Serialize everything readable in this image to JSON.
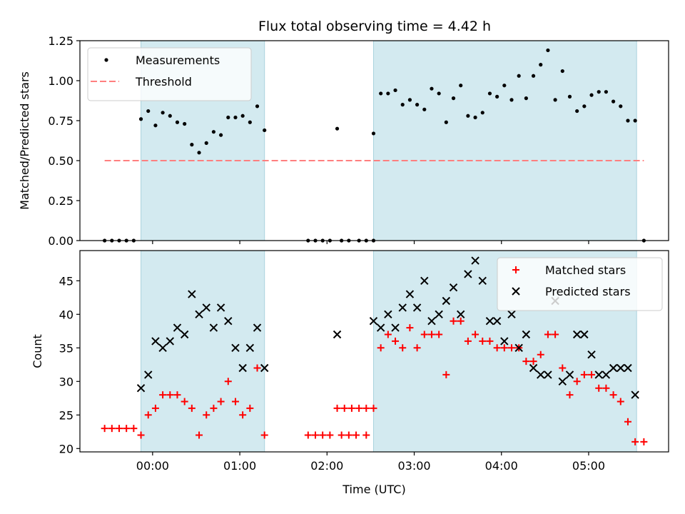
{
  "title": "Flux total observing time = 4.42 h",
  "chart_data": [
    {
      "type": "scatter",
      "ylabel": "Matched/Predicted stars",
      "xlabel": "",
      "xlim": [
        "23:10",
        "05:55"
      ],
      "ylim": [
        0,
        1.25
      ],
      "yticks": [
        0.0,
        0.25,
        0.5,
        0.75,
        1.0,
        1.25
      ],
      "ytick_labels": [
        "0.00",
        "0.25",
        "0.50",
        "0.75",
        "1.00",
        "1.25"
      ],
      "legend_position": "top-left",
      "shaded_intervals": [
        [
          "23:52",
          "01:17"
        ],
        [
          "02:32",
          "05:33"
        ]
      ],
      "shade_color": "#d3eaf0",
      "reference_lines": [
        {
          "name": "Threshold",
          "y": 0.5,
          "x_from": "23:27",
          "x_to": "05:38",
          "color": "#ff7f7f",
          "style": "dashed"
        }
      ],
      "series": [
        {
          "name": "Measurements",
          "marker": "dot",
          "color": "#000000",
          "points": [
            [
              "23:27",
              0.0
            ],
            [
              "23:32",
              0.0
            ],
            [
              "23:37",
              0.0
            ],
            [
              "23:42",
              0.0
            ],
            [
              "23:47",
              0.0
            ],
            [
              "23:52",
              0.76
            ],
            [
              "23:57",
              0.81
            ],
            [
              "00:02",
              0.72
            ],
            [
              "00:07",
              0.8
            ],
            [
              "00:12",
              0.78
            ],
            [
              "00:17",
              0.74
            ],
            [
              "00:22",
              0.73
            ],
            [
              "00:27",
              0.6
            ],
            [
              "00:32",
              0.55
            ],
            [
              "00:37",
              0.61
            ],
            [
              "00:42",
              0.68
            ],
            [
              "00:47",
              0.66
            ],
            [
              "00:52",
              0.77
            ],
            [
              "00:57",
              0.77
            ],
            [
              "01:02",
              0.78
            ],
            [
              "01:07",
              0.74
            ],
            [
              "01:12",
              0.84
            ],
            [
              "01:17",
              0.69
            ],
            [
              "01:47",
              0.0
            ],
            [
              "01:52",
              0.0
            ],
            [
              "01:57",
              0.0
            ],
            [
              "02:02",
              0.0
            ],
            [
              "02:10",
              0.0
            ],
            [
              "02:15",
              0.0
            ],
            [
              "02:22",
              0.0
            ],
            [
              "02:27",
              0.0
            ],
            [
              "02:32",
              0.0
            ],
            [
              "02:07",
              0.7
            ],
            [
              "02:32",
              0.67
            ],
            [
              "02:37",
              0.92
            ],
            [
              "02:42",
              0.92
            ],
            [
              "02:47",
              0.94
            ],
            [
              "02:52",
              0.85
            ],
            [
              "02:57",
              0.88
            ],
            [
              "03:02",
              0.85
            ],
            [
              "03:07",
              0.82
            ],
            [
              "03:12",
              0.95
            ],
            [
              "03:17",
              0.92
            ],
            [
              "03:22",
              0.74
            ],
            [
              "03:27",
              0.89
            ],
            [
              "03:32",
              0.97
            ],
            [
              "03:37",
              0.78
            ],
            [
              "03:42",
              0.77
            ],
            [
              "03:47",
              0.8
            ],
            [
              "03:52",
              0.92
            ],
            [
              "03:57",
              0.9
            ],
            [
              "04:02",
              0.97
            ],
            [
              "04:07",
              0.88
            ],
            [
              "04:12",
              1.03
            ],
            [
              "04:17",
              0.89
            ],
            [
              "04:22",
              1.03
            ],
            [
              "04:27",
              1.1
            ],
            [
              "04:32",
              1.19
            ],
            [
              "04:37",
              0.88
            ],
            [
              "04:42",
              1.06
            ],
            [
              "04:47",
              0.9
            ],
            [
              "04:52",
              0.81
            ],
            [
              "04:57",
              0.84
            ],
            [
              "05:02",
              0.91
            ],
            [
              "05:07",
              0.93
            ],
            [
              "05:12",
              0.93
            ],
            [
              "05:17",
              0.87
            ],
            [
              "05:22",
              0.84
            ],
            [
              "05:27",
              0.75
            ],
            [
              "05:32",
              0.75
            ],
            [
              "05:38",
              0.0
            ]
          ]
        }
      ]
    },
    {
      "type": "scatter",
      "ylabel": "Count",
      "xlabel": "Time (UTC)",
      "xlim": [
        "23:10",
        "05:55"
      ],
      "ylim": [
        19.5,
        49.5
      ],
      "yticks": [
        20,
        25,
        30,
        35,
        40,
        45
      ],
      "ytick_labels": [
        "20",
        "25",
        "30",
        "35",
        "40",
        "45"
      ],
      "xticks": [
        "00:00",
        "01:00",
        "02:00",
        "03:00",
        "04:00",
        "05:00"
      ],
      "legend_position": "top-right",
      "shaded_intervals": [
        [
          "23:52",
          "01:17"
        ],
        [
          "02:32",
          "05:33"
        ]
      ],
      "shade_color": "#d3eaf0",
      "series": [
        {
          "name": "Matched stars",
          "marker": "plus",
          "color": "#ff0000",
          "points": [
            [
              "23:27",
              23
            ],
            [
              "23:32",
              23
            ],
            [
              "23:37",
              23
            ],
            [
              "23:42",
              23
            ],
            [
              "23:47",
              23
            ],
            [
              "23:52",
              22
            ],
            [
              "23:57",
              25
            ],
            [
              "00:02",
              26
            ],
            [
              "00:07",
              28
            ],
            [
              "00:12",
              28
            ],
            [
              "00:17",
              28
            ],
            [
              "00:22",
              27
            ],
            [
              "00:27",
              26
            ],
            [
              "00:32",
              22
            ],
            [
              "00:37",
              25
            ],
            [
              "00:42",
              26
            ],
            [
              "00:47",
              27
            ],
            [
              "00:52",
              30
            ],
            [
              "00:57",
              27
            ],
            [
              "01:02",
              25
            ],
            [
              "01:07",
              26
            ],
            [
              "01:12",
              32
            ],
            [
              "01:17",
              22
            ],
            [
              "01:47",
              22
            ],
            [
              "01:52",
              22
            ],
            [
              "01:57",
              22
            ],
            [
              "02:02",
              22
            ],
            [
              "02:10",
              22
            ],
            [
              "02:15",
              22
            ],
            [
              "02:20",
              22
            ],
            [
              "02:27",
              22
            ],
            [
              "02:07",
              26
            ],
            [
              "02:12",
              26
            ],
            [
              "02:17",
              26
            ],
            [
              "02:22",
              26
            ],
            [
              "02:27",
              26
            ],
            [
              "02:32",
              26
            ],
            [
              "02:37",
              35
            ],
            [
              "02:42",
              37
            ],
            [
              "02:47",
              36
            ],
            [
              "02:52",
              35
            ],
            [
              "02:57",
              38
            ],
            [
              "03:02",
              35
            ],
            [
              "03:07",
              37
            ],
            [
              "03:12",
              37
            ],
            [
              "03:17",
              37
            ],
            [
              "03:22",
              31
            ],
            [
              "03:27",
              39
            ],
            [
              "03:32",
              39
            ],
            [
              "03:37",
              36
            ],
            [
              "03:42",
              37
            ],
            [
              "03:47",
              36
            ],
            [
              "03:52",
              36
            ],
            [
              "03:57",
              35
            ],
            [
              "04:02",
              35
            ],
            [
              "04:07",
              35
            ],
            [
              "04:12",
              35
            ],
            [
              "04:17",
              33
            ],
            [
              "04:22",
              33
            ],
            [
              "04:27",
              34
            ],
            [
              "04:32",
              37
            ],
            [
              "04:37",
              37
            ],
            [
              "04:42",
              32
            ],
            [
              "04:47",
              28
            ],
            [
              "04:52",
              30
            ],
            [
              "04:57",
              31
            ],
            [
              "05:02",
              31
            ],
            [
              "05:07",
              29
            ],
            [
              "05:12",
              29
            ],
            [
              "05:17",
              28
            ],
            [
              "05:22",
              27
            ],
            [
              "05:27",
              24
            ],
            [
              "05:32",
              21
            ],
            [
              "05:38",
              21
            ]
          ]
        },
        {
          "name": "Predicted stars",
          "marker": "x",
          "color": "#000000",
          "points": [
            [
              "23:52",
              29
            ],
            [
              "23:57",
              31
            ],
            [
              "00:02",
              36
            ],
            [
              "00:07",
              35
            ],
            [
              "00:12",
              36
            ],
            [
              "00:17",
              38
            ],
            [
              "00:22",
              37
            ],
            [
              "00:27",
              43
            ],
            [
              "00:32",
              40
            ],
            [
              "00:37",
              41
            ],
            [
              "00:42",
              38
            ],
            [
              "00:47",
              41
            ],
            [
              "00:52",
              39
            ],
            [
              "00:57",
              35
            ],
            [
              "01:02",
              32
            ],
            [
              "01:07",
              35
            ],
            [
              "01:12",
              38
            ],
            [
              "01:17",
              32
            ],
            [
              "02:07",
              37
            ],
            [
              "02:32",
              39
            ],
            [
              "02:37",
              38
            ],
            [
              "02:42",
              40
            ],
            [
              "02:47",
              38
            ],
            [
              "02:52",
              41
            ],
            [
              "02:57",
              43
            ],
            [
              "03:02",
              41
            ],
            [
              "03:07",
              45
            ],
            [
              "03:12",
              39
            ],
            [
              "03:17",
              40
            ],
            [
              "03:22",
              42
            ],
            [
              "03:27",
              44
            ],
            [
              "03:32",
              40
            ],
            [
              "03:37",
              46
            ],
            [
              "03:42",
              48
            ],
            [
              "03:47",
              45
            ],
            [
              "03:52",
              39
            ],
            [
              "03:57",
              39
            ],
            [
              "04:02",
              36
            ],
            [
              "04:07",
              40
            ],
            [
              "04:12",
              35
            ],
            [
              "04:17",
              37
            ],
            [
              "04:22",
              32
            ],
            [
              "04:27",
              31
            ],
            [
              "04:32",
              31
            ],
            [
              "04:37",
              42
            ],
            [
              "04:42",
              30
            ],
            [
              "04:47",
              31
            ],
            [
              "04:52",
              37
            ],
            [
              "04:57",
              37
            ],
            [
              "05:02",
              34
            ],
            [
              "05:07",
              31
            ],
            [
              "05:12",
              31
            ],
            [
              "05:17",
              32
            ],
            [
              "05:22",
              32
            ],
            [
              "05:27",
              32
            ],
            [
              "05:32",
              28
            ]
          ]
        }
      ]
    }
  ]
}
